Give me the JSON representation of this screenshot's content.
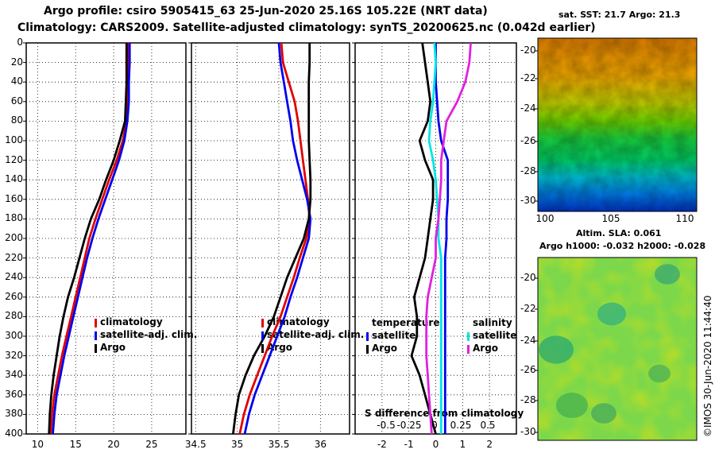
{
  "header": {
    "title_line1": "Argo profile: csiro 5905415_63 25-Jun-2020 25.16S 105.22E (NRT data)",
    "title_line2": "Climatology: CARS2009. Satellite-adjusted climatology: synTS_20200625.nc (0.042d earlier)"
  },
  "maps": {
    "sst_title": "sat. SST: 21.7 Argo: 21.3",
    "sla_title": "Altim. SLA: 0.061",
    "sla_subtitle": "Argo h1000: -0.032 h2000: -0.028",
    "lat_ticks": [
      "-20",
      "-22",
      "-24",
      "-26",
      "-28",
      "-30"
    ],
    "lon_ticks": [
      "100",
      "105",
      "110"
    ],
    "watermark": "©IMOS 30-Jun-2020 11:44:40"
  },
  "chart_data": [
    {
      "type": "line",
      "name": "temperature-profile",
      "xlabel": "",
      "ylabel": "",
      "xlim": [
        8.5,
        29.5
      ],
      "ylim": [
        400,
        0
      ],
      "x_ticks": [
        "10",
        "15",
        "20",
        "25"
      ],
      "y_ticks": [
        "0",
        "20",
        "40",
        "60",
        "80",
        "100",
        "120",
        "140",
        "160",
        "180",
        "200",
        "220",
        "240",
        "260",
        "280",
        "300",
        "320",
        "340",
        "360",
        "380",
        "400"
      ],
      "depth": [
        0,
        20,
        40,
        60,
        80,
        100,
        120,
        140,
        160,
        180,
        200,
        220,
        240,
        260,
        280,
        300,
        320,
        340,
        360,
        380,
        400
      ],
      "legend": [
        "climatology",
        "satellite-adj. clim.",
        "Argo"
      ],
      "series": [
        {
          "name": "climatology",
          "color": "#e00000",
          "values": [
            21.9,
            21.9,
            21.8,
            21.8,
            21.7,
            21.2,
            20.4,
            19.4,
            18.5,
            17.6,
            16.8,
            16.2,
            15.6,
            15.0,
            14.4,
            13.8,
            13.2,
            12.7,
            12.2,
            11.9,
            11.7
          ]
        },
        {
          "name": "satellite-adj. clim.",
          "color": "#0000ee",
          "values": [
            22.1,
            22.1,
            22.0,
            22.0,
            21.8,
            21.4,
            20.7,
            19.8,
            18.9,
            18.0,
            17.2,
            16.5,
            15.9,
            15.3,
            14.7,
            14.1,
            13.5,
            13.0,
            12.5,
            12.2,
            12.0
          ]
        },
        {
          "name": "Argo",
          "color": "#000000",
          "values": [
            21.7,
            21.7,
            21.7,
            21.6,
            21.5,
            20.8,
            20.0,
            19.0,
            18.1,
            17.0,
            16.2,
            15.5,
            14.8,
            14.0,
            13.4,
            12.9,
            12.5,
            12.1,
            11.8,
            11.6,
            11.5
          ]
        }
      ]
    },
    {
      "type": "line",
      "name": "salinity-profile",
      "xlabel": "",
      "ylabel": "",
      "xlim": [
        34.45,
        36.35
      ],
      "ylim": [
        400,
        0
      ],
      "x_ticks": [
        "34.5",
        "35",
        "35.5",
        "36"
      ],
      "depth": [
        0,
        20,
        40,
        60,
        80,
        100,
        120,
        140,
        160,
        180,
        200,
        220,
        240,
        260,
        280,
        300,
        320,
        340,
        360,
        380,
        400
      ],
      "legend": [
        "climatology",
        "satellite-adj. clim.",
        "Argo"
      ],
      "series": [
        {
          "name": "climatology",
          "color": "#e00000",
          "values": [
            35.53,
            35.55,
            35.62,
            35.69,
            35.73,
            35.76,
            35.79,
            35.82,
            35.85,
            35.87,
            35.83,
            35.75,
            35.68,
            35.6,
            35.52,
            35.42,
            35.33,
            35.24,
            35.15,
            35.08,
            35.03
          ]
        },
        {
          "name": "satellite-adj. clim.",
          "color": "#0000ee",
          "values": [
            35.5,
            35.52,
            35.56,
            35.6,
            35.64,
            35.67,
            35.72,
            35.78,
            35.84,
            35.88,
            35.86,
            35.79,
            35.72,
            35.64,
            35.57,
            35.48,
            35.39,
            35.3,
            35.21,
            35.14,
            35.09
          ]
        },
        {
          "name": "Argo",
          "color": "#000000",
          "values": [
            35.87,
            35.87,
            35.86,
            35.86,
            35.86,
            35.86,
            35.87,
            35.88,
            35.88,
            35.86,
            35.8,
            35.7,
            35.6,
            35.52,
            35.44,
            35.33,
            35.2,
            35.1,
            35.02,
            34.98,
            34.95
          ]
        }
      ]
    },
    {
      "type": "line",
      "name": "difference-profile",
      "xlabel": "S difference from climatology",
      "xlim": [
        -3.0,
        3.0
      ],
      "x_ticks": [
        "-2",
        "-1",
        "0",
        "1",
        "2"
      ],
      "secondary_x_ticks": [
        "-0.5",
        "-0.25",
        "0",
        "0.25",
        "0.5"
      ],
      "depth": [
        0,
        20,
        40,
        60,
        80,
        100,
        120,
        140,
        160,
        180,
        200,
        220,
        240,
        260,
        280,
        300,
        320,
        340,
        360,
        380,
        400
      ],
      "legend_temperature_title": "temperature",
      "legend_salinity_title": "salinity",
      "legend_temperature": [
        "satellite",
        "Argo"
      ],
      "legend_salinity": [
        "satellite",
        "Argo"
      ],
      "series": [
        {
          "name": "temperature satellite",
          "color": "#0000ee",
          "values": [
            0.0,
            0.0,
            0.0,
            0.05,
            0.1,
            0.2,
            0.45,
            0.45,
            0.45,
            0.4,
            0.4,
            0.35,
            0.35,
            0.35,
            0.35,
            0.35,
            0.35,
            0.35,
            0.35,
            0.35,
            0.35
          ]
        },
        {
          "name": "temperature Argo",
          "color": "#000000",
          "values": [
            -0.5,
            -0.4,
            -0.3,
            -0.2,
            -0.3,
            -0.6,
            -0.4,
            -0.1,
            -0.1,
            -0.2,
            -0.3,
            -0.4,
            -0.6,
            -0.8,
            -0.7,
            -0.7,
            -0.9,
            -0.6,
            -0.4,
            -0.2,
            0.0
          ]
        },
        {
          "name": "salinity satellite",
          "color": "#00e5e5",
          "values": [
            -0.05,
            0.0,
            -0.05,
            -0.1,
            -0.2,
            -0.25,
            -0.1,
            0.0,
            0.05,
            0.1,
            0.1,
            0.2,
            0.2,
            0.2,
            0.2,
            0.2,
            0.2,
            0.2,
            0.2,
            0.2,
            0.2
          ]
        },
        {
          "name": "salinity Argo",
          "color": "#e020e0",
          "values": [
            1.3,
            1.25,
            1.1,
            0.8,
            0.4,
            0.3,
            0.2,
            0.2,
            0.15,
            0.1,
            0.0,
            0.0,
            -0.15,
            -0.3,
            -0.35,
            -0.35,
            -0.35,
            -0.3,
            -0.25,
            -0.2,
            -0.15
          ]
        }
      ]
    }
  ]
}
